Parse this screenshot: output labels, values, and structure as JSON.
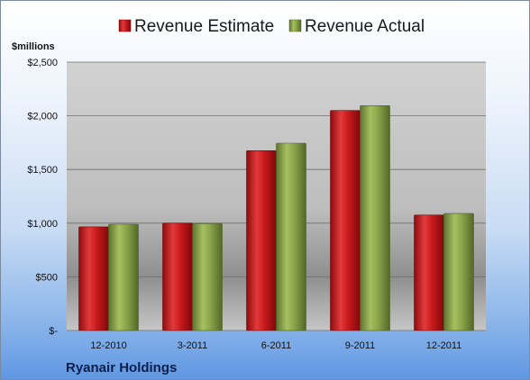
{
  "chart_data": {
    "type": "bar",
    "categories": [
      "12-2010",
      "3-2011",
      "6-2011",
      "9-2011",
      "12-2011"
    ],
    "series": [
      {
        "name": "Revenue Estimate",
        "color": "#c8191c",
        "values": [
          965,
          1000,
          1675,
          2050,
          1075
        ]
      },
      {
        "name": "Revenue Actual",
        "color": "#8aa44a",
        "values": [
          990,
          995,
          1745,
          2095,
          1090
        ]
      }
    ],
    "unit_label": "$millions",
    "ylim": [
      0,
      2500
    ],
    "y_ticks": [
      {
        "value": 0,
        "label": "$-"
      },
      {
        "value": 500,
        "label": "$500"
      },
      {
        "value": 1000,
        "label": "$1,000"
      },
      {
        "value": 1500,
        "label": "$1,500"
      },
      {
        "value": 2000,
        "label": "$2,000"
      },
      {
        "value": 2500,
        "label": "$2,500"
      }
    ],
    "grid": true,
    "legend_position": "top",
    "footer_label": "Ryanair Holdings"
  }
}
